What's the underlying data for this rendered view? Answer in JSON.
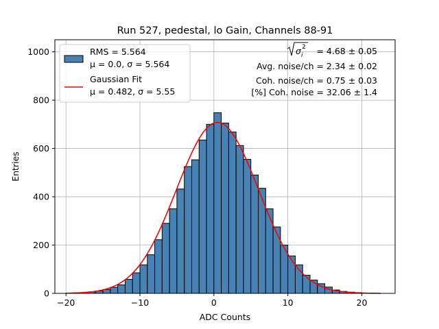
{
  "chart_data": {
    "type": "bar",
    "title": "Run 527, pedestal, lo Gain, Channels 88-91",
    "xlabel": "ADC Counts",
    "ylabel": "Entries",
    "xlim": [
      -21.5,
      24.5
    ],
    "ylim": [
      0,
      1050
    ],
    "xticks": [
      -20,
      -10,
      0,
      10,
      20
    ],
    "yticks": [
      0,
      200,
      400,
      600,
      800,
      1000
    ],
    "grid": true,
    "legend_position": "top-left",
    "bin_width": 1,
    "bins": [
      {
        "x": -19.5,
        "value": 1
      },
      {
        "x": -18.5,
        "value": 2
      },
      {
        "x": -17.5,
        "value": 3
      },
      {
        "x": -16.5,
        "value": 6
      },
      {
        "x": -15.5,
        "value": 10
      },
      {
        "x": -14.5,
        "value": 16
      },
      {
        "x": -13.5,
        "value": 25
      },
      {
        "x": -12.5,
        "value": 35
      },
      {
        "x": -11.5,
        "value": 58
      },
      {
        "x": -10.5,
        "value": 85
      },
      {
        "x": -9.5,
        "value": 118
      },
      {
        "x": -8.5,
        "value": 160
      },
      {
        "x": -7.5,
        "value": 222
      },
      {
        "x": -6.5,
        "value": 290
      },
      {
        "x": -5.5,
        "value": 350
      },
      {
        "x": -4.5,
        "value": 432
      },
      {
        "x": -3.5,
        "value": 525
      },
      {
        "x": -2.5,
        "value": 553
      },
      {
        "x": -1.5,
        "value": 635
      },
      {
        "x": -0.5,
        "value": 700
      },
      {
        "x": 0.5,
        "value": 748
      },
      {
        "x": 1.5,
        "value": 705
      },
      {
        "x": 2.5,
        "value": 668
      },
      {
        "x": 3.5,
        "value": 612
      },
      {
        "x": 4.5,
        "value": 555
      },
      {
        "x": 5.5,
        "value": 490
      },
      {
        "x": 6.5,
        "value": 435
      },
      {
        "x": 7.5,
        "value": 350
      },
      {
        "x": 8.5,
        "value": 275
      },
      {
        "x": 9.5,
        "value": 200
      },
      {
        "x": 10.5,
        "value": 155
      },
      {
        "x": 11.5,
        "value": 118
      },
      {
        "x": 12.5,
        "value": 75
      },
      {
        "x": 13.5,
        "value": 55
      },
      {
        "x": 14.5,
        "value": 40
      },
      {
        "x": 15.5,
        "value": 26
      },
      {
        "x": 16.5,
        "value": 14
      },
      {
        "x": 17.5,
        "value": 8
      },
      {
        "x": 18.5,
        "value": 5
      },
      {
        "x": 19.5,
        "value": 3
      },
      {
        "x": 20.5,
        "value": 1
      },
      {
        "x": 21.5,
        "value": 1
      }
    ],
    "fit": {
      "type": "gaussian",
      "mu": 0.482,
      "sigma": 5.55,
      "amplitude": 708,
      "x_range": [
        -19.5,
        22.5
      ],
      "color": "#ff0000"
    },
    "histogram_color": "#4682b4",
    "legend": {
      "hist": {
        "line1": "RMS = 5.564",
        "line2": "μ = 0.0, σ = 5.564"
      },
      "fit": {
        "line1": "Gaussian Fit",
        "line2": "μ = 0.482, σ = 5.55"
      }
    },
    "annotations": {
      "sigma_symbol": "σ",
      "sigma_sub": "i",
      "sigma_sup": "2",
      "sigma_value": "= 4.68 ± 0.05",
      "avg_noise": "Avg. noise/ch = 2.34 ± 0.02",
      "coh_noise": "Coh. noise/ch = 0.75 ± 0.03",
      "pct_coh": "[%] Coh. noise = 32.06 ± 1.4"
    }
  }
}
